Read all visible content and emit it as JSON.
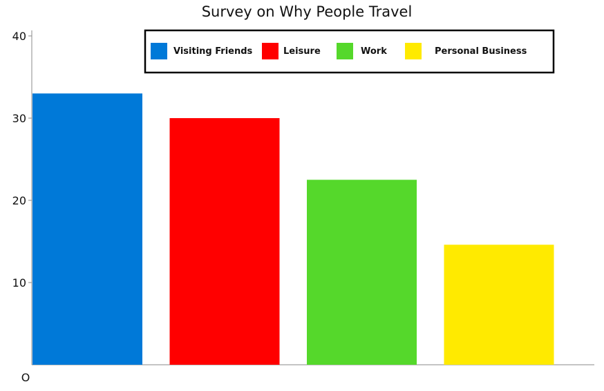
{
  "chart_data": {
    "type": "bar",
    "title": "Survey on Why People Travel",
    "xlabel": "",
    "ylabel": "",
    "categories": [
      "Visiting Friends",
      "Leisure",
      "Work",
      "Personal Business"
    ],
    "values": [
      33,
      30,
      22.5,
      14.6
    ],
    "colors": [
      "#0079d8",
      "#ff0000",
      "#55d82b",
      "#ffea00"
    ],
    "ylim": [
      0,
      40
    ],
    "yticks": [
      {
        "value": 0,
        "label": "O"
      },
      {
        "value": 10,
        "label": "10"
      },
      {
        "value": 20,
        "label": "20"
      },
      {
        "value": 30,
        "label": "30"
      },
      {
        "value": 40,
        "label": "40"
      }
    ],
    "grid": false,
    "legend": {
      "position": "top-center",
      "entries": [
        "Visiting Friends",
        "Leisure",
        "Work",
        "Personal Business"
      ]
    }
  }
}
